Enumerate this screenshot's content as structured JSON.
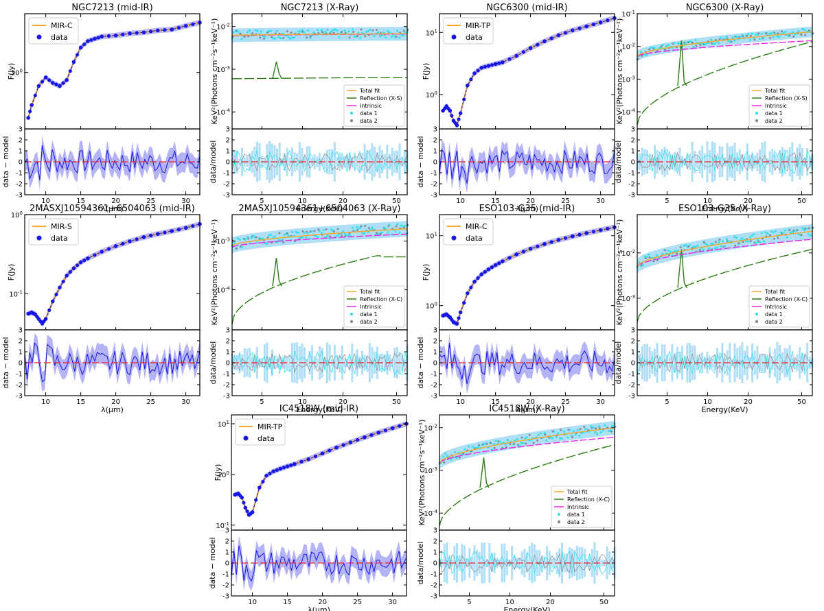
{
  "chart_data": [
    {
      "id": "p1",
      "type": "line",
      "title": "NGC7213 (mid-IR)",
      "kind": "mir",
      "model": "MIR-C",
      "ylabel": "F(Jy)",
      "xlabel": "λ(μm)",
      "ylabel_res": "data − model",
      "xlim": [
        7,
        32
      ],
      "xticks": [
        10,
        15,
        20,
        25,
        30
      ],
      "ylim_log": [
        0.3,
        3.5
      ],
      "yticks": [
        {
          "v": 1,
          "label": "10^0"
        }
      ],
      "res_ylim": [
        -3,
        3
      ],
      "res_yticks": [
        -3,
        -2,
        -1,
        0,
        1,
        2,
        3
      ],
      "legend": [
        "MIR-C",
        "data"
      ],
      "x": [
        7.5,
        8,
        9,
        10,
        11,
        12,
        13,
        14,
        15,
        16,
        17,
        18,
        20,
        22,
        24,
        26,
        28,
        30,
        32
      ],
      "y": [
        0.38,
        0.5,
        0.75,
        0.9,
        0.8,
        0.75,
        0.85,
        1.25,
        1.7,
        1.95,
        2.05,
        2.15,
        2.2,
        2.3,
        2.35,
        2.45,
        2.5,
        2.7,
        2.9
      ]
    },
    {
      "id": "p2",
      "type": "line",
      "title": "NGC7213 (X-Ray)",
      "kind": "xray",
      "ylabel": "KeV²(Photons cm⁻²s⁻¹keV⁻¹)",
      "xlabel": "Energy(KeV)",
      "ylabel_res": "data/model",
      "xlim": [
        3,
        60
      ],
      "xticks": [
        5,
        10,
        20,
        50
      ],
      "ylim_log": [
        4e-05,
        0.02
      ],
      "yticks": [
        {
          "v": 0.0001,
          "label": "10^-4"
        },
        {
          "v": 0.001,
          "label": "10^-3"
        },
        {
          "v": 0.01,
          "label": "10^-2"
        }
      ],
      "res_ylim": [
        -3,
        3
      ],
      "res_yticks": [
        -3,
        -2,
        -1,
        0,
        1,
        2,
        3
      ],
      "legend": [
        "Total fit",
        "Reflection (X-S)",
        "Intrinsic",
        "data 1",
        "data 2"
      ],
      "total": [
        0.0062,
        0.0068
      ],
      "intrinsic": [
        0.0061,
        0.0067
      ],
      "reflection": [
        0.0006,
        0.00065
      ],
      "refl_curve": "flat",
      "line_peak": 0.0015
    },
    {
      "id": "p3",
      "type": "line",
      "title": "NGC6300 (mid-IR)",
      "kind": "mir",
      "model": "MIR-TP",
      "ylabel": "F(Jy)",
      "xlabel": "λ(μm)",
      "ylabel_res": "data − model",
      "xlim": [
        7,
        32
      ],
      "xticks": [
        10,
        15,
        20,
        25,
        30
      ],
      "ylim_log": [
        0.28,
        20
      ],
      "yticks": [
        {
          "v": 1,
          "label": "10^0"
        },
        {
          "v": 10,
          "label": "10^1"
        }
      ],
      "res_ylim": [
        -3,
        3
      ],
      "res_yticks": [
        -3,
        -2,
        -1,
        0,
        1,
        2,
        3
      ],
      "legend": [
        "MIR-TP",
        "data"
      ],
      "x": [
        7.5,
        8,
        8.5,
        9,
        9.5,
        10,
        11,
        12,
        13,
        14,
        15,
        16,
        18,
        20,
        22,
        24,
        26,
        28,
        30,
        32
      ],
      "y": [
        0.55,
        0.65,
        0.55,
        0.38,
        0.32,
        0.5,
        1.4,
        2.2,
        2.7,
        2.9,
        3.1,
        3.3,
        4.2,
        5.6,
        7.2,
        9,
        10.8,
        12.5,
        14.5,
        17
      ]
    },
    {
      "id": "p4",
      "type": "line",
      "title": "NGC6300 (X-Ray)",
      "kind": "xray",
      "ylabel": "KeV²(Photons cm⁻²s⁻¹keV⁻¹)",
      "xlabel": "Energy(KeV)",
      "ylabel_res": "data/model",
      "xlim": [
        3,
        60
      ],
      "xticks": [
        5,
        10,
        20,
        50
      ],
      "ylim_log": [
        3e-05,
        0.1
      ],
      "yticks": [
        {
          "v": 0.0001,
          "label": "10^-4"
        },
        {
          "v": 0.001,
          "label": "10^-3"
        },
        {
          "v": 0.01,
          "label": "10^-2"
        },
        {
          "v": 0.1,
          "label": "10^-1"
        }
      ],
      "res_ylim": [
        -3,
        3
      ],
      "res_yticks": [
        -3,
        -2,
        -1,
        0,
        1,
        2,
        3
      ],
      "legend": [
        "Total fit",
        "Reflection (X-S)",
        "Intrinsic",
        "data 1",
        "data 2"
      ],
      "total": [
        0.005,
        0.028
      ],
      "intrinsic": [
        0.005,
        0.015
      ],
      "reflection": [
        4e-05,
        0.014
      ],
      "refl_curve": "rise",
      "line_peak": 0.015
    },
    {
      "id": "p5",
      "type": "line",
      "title": "2MASXJ10594361+6504063 (mid-IR)",
      "kind": "mir",
      "model": "MIR-S",
      "ylabel": "F(Jy)",
      "xlabel": "λ(μm)",
      "ylabel_res": "data − model",
      "xlim": [
        7,
        32
      ],
      "xticks": [
        10,
        15,
        20,
        25,
        30
      ],
      "ylim_log": [
        0.035,
        1
      ],
      "yticks": [
        {
          "v": 0.1,
          "label": "10^-1"
        },
        {
          "v": 1,
          "label": "10^0"
        }
      ],
      "res_ylim": [
        -3,
        3
      ],
      "res_yticks": [
        -3,
        -2,
        -1,
        0,
        1,
        2,
        3
      ],
      "legend": [
        "MIR-S",
        "data"
      ],
      "x": [
        7.5,
        8,
        8.5,
        9,
        9.5,
        10,
        11,
        12,
        13,
        14,
        15,
        16,
        18,
        20,
        22,
        24,
        26,
        28,
        30,
        32
      ],
      "y": [
        0.056,
        0.058,
        0.055,
        0.048,
        0.042,
        0.048,
        0.08,
        0.12,
        0.17,
        0.21,
        0.25,
        0.28,
        0.34,
        0.4,
        0.46,
        0.52,
        0.57,
        0.62,
        0.68,
        0.76
      ]
    },
    {
      "id": "p6",
      "type": "line",
      "title": "2MASXJ10594361+6504063 (X-Ray)",
      "kind": "xray",
      "ylabel": "KeV²(Photons cm⁻²s⁻¹keV⁻¹)",
      "xlabel": "Energy(KeV)",
      "ylabel_res": "data/model",
      "xlim": [
        3,
        60
      ],
      "xticks": [
        5,
        10,
        20,
        50
      ],
      "ylim_log": [
        1.5e-05,
        0.0035
      ],
      "yticks": [
        {
          "v": 0.0001,
          "label": "10^-4"
        },
        {
          "v": 0.001,
          "label": "10^-3"
        }
      ],
      "res_ylim": [
        -3,
        3
      ],
      "res_yticks": [
        -3,
        -2,
        -1,
        0,
        1,
        2,
        3
      ],
      "legend": [
        "Total fit",
        "Reflection (X-C)",
        "Intrinsic",
        "data 1",
        "data 2"
      ],
      "total": [
        0.0008,
        0.0018
      ],
      "intrinsic": [
        0.00075,
        0.0014
      ],
      "reflection": [
        2e-05,
        0.0005
      ],
      "refl_curve": "hump",
      "line_peak": 0.00045
    },
    {
      "id": "p7",
      "type": "line",
      "title": "ESO103-G35 (mid-IR)",
      "kind": "mir",
      "model": "MIR-C",
      "ylabel": "F(Jy)",
      "xlabel": "λ(μm)",
      "ylabel_res": "data − model",
      "xlim": [
        7,
        32
      ],
      "xticks": [
        10,
        15,
        20,
        25,
        30
      ],
      "ylim_log": [
        0.45,
        20
      ],
      "yticks": [
        {
          "v": 1,
          "label": "10^0"
        },
        {
          "v": 10,
          "label": "10^1"
        }
      ],
      "res_ylim": [
        -3,
        3
      ],
      "res_yticks": [
        -3,
        -2,
        -1,
        0,
        1,
        2,
        3
      ],
      "legend": [
        "MIR-C",
        "data"
      ],
      "x": [
        7.5,
        8,
        8.5,
        9,
        9.5,
        10,
        11,
        12,
        13,
        14,
        15,
        16,
        18,
        20,
        22,
        24,
        26,
        28,
        30,
        32
      ],
      "y": [
        0.72,
        0.75,
        0.68,
        0.58,
        0.55,
        0.8,
        1.5,
        2.2,
        2.8,
        3.3,
        3.8,
        4.3,
        5.4,
        6.5,
        7.6,
        8.7,
        9.8,
        10.9,
        12,
        13.2
      ]
    },
    {
      "id": "p8",
      "type": "line",
      "title": "ESO103-G35 (X-Ray)",
      "kind": "xray",
      "ylabel": "KeV²(Photons cm⁻²s⁻¹keV⁻¹)",
      "xlabel": "Energy(KeV)",
      "ylabel_res": "data/model",
      "xlim": [
        3,
        60
      ],
      "xticks": [
        5,
        10,
        20,
        50
      ],
      "ylim_log": [
        0.0002,
        0.07
      ],
      "yticks": [
        {
          "v": 0.001,
          "label": "10^-3"
        },
        {
          "v": 0.01,
          "label": "10^-2"
        }
      ],
      "res_ylim": [
        -3,
        3
      ],
      "res_yticks": [
        -3,
        -2,
        -1,
        0,
        1,
        2,
        3
      ],
      "legend": [
        "Total fit",
        "Reflection (X-C)",
        "Intrinsic",
        "data 1",
        "data 2"
      ],
      "total": [
        0.005,
        0.03
      ],
      "intrinsic": [
        0.005,
        0.02
      ],
      "reflection": [
        0.0003,
        0.012
      ],
      "refl_curve": "rise",
      "line_peak": 0.012
    },
    {
      "id": "p9",
      "type": "line",
      "title": "IC4518W (mid-IR)",
      "kind": "mir",
      "model": "MIR-TP",
      "ylabel": "F(Jy)",
      "xlabel": "λ(μm)",
      "ylabel_res": "data − model",
      "xlim": [
        7,
        32
      ],
      "xticks": [
        10,
        15,
        20,
        25,
        30
      ],
      "ylim_log": [
        0.08,
        15
      ],
      "yticks": [
        {
          "v": 0.1,
          "label": "10^-1"
        },
        {
          "v": 1,
          "label": "10^0"
        },
        {
          "v": 10,
          "label": "10^1"
        }
      ],
      "res_ylim": [
        -3,
        3
      ],
      "res_yticks": [
        -3,
        -2,
        -1,
        0,
        1,
        2,
        3
      ],
      "legend": [
        "MIR-TP",
        "data"
      ],
      "x": [
        7.5,
        8,
        8.5,
        9,
        9.5,
        10,
        11,
        12,
        13,
        14,
        15,
        16,
        18,
        20,
        22,
        24,
        26,
        28,
        30,
        32
      ],
      "y": [
        0.4,
        0.42,
        0.35,
        0.22,
        0.16,
        0.18,
        0.55,
        0.95,
        1.15,
        1.3,
        1.45,
        1.6,
        2.0,
        2.6,
        3.4,
        4.3,
        5.4,
        6.7,
        8.2,
        10
      ]
    },
    {
      "id": "p10",
      "type": "line",
      "title": "IC4518W (X-Ray)",
      "kind": "xray",
      "ylabel": "KeV²(Photons cm⁻²s⁻¹keV⁻¹)",
      "xlabel": "Energy(KeV)",
      "ylabel_res": "data/model",
      "xlim": [
        3,
        60
      ],
      "xticks": [
        5,
        10,
        20,
        50
      ],
      "ylim_log": [
        4e-05,
        0.02
      ],
      "yticks": [
        {
          "v": 0.0001,
          "label": "10^-4"
        },
        {
          "v": 0.001,
          "label": "10^-3"
        },
        {
          "v": 0.01,
          "label": "10^-2"
        }
      ],
      "res_ylim": [
        -3,
        3
      ],
      "res_yticks": [
        -3,
        -2,
        -1,
        0,
        1,
        2,
        3
      ],
      "legend": [
        "Total fit",
        "Reflection (X-C)",
        "Intrinsic",
        "data 1",
        "data 2"
      ],
      "total": [
        0.0015,
        0.01
      ],
      "intrinsic": [
        0.0015,
        0.006
      ],
      "reflection": [
        5e-05,
        0.004
      ],
      "refl_curve": "rise",
      "line_peak": 0.002
    }
  ],
  "colors": {
    "model": "#f5a623",
    "data": "#1515e6",
    "band": "#9a9af2",
    "data1": "#33e0ee",
    "data2": "#888888",
    "cyanband": "#6ec3f0",
    "reflection": "#2a7d12",
    "intrinsic": "#ee22ee",
    "zero": "#e8242f"
  }
}
